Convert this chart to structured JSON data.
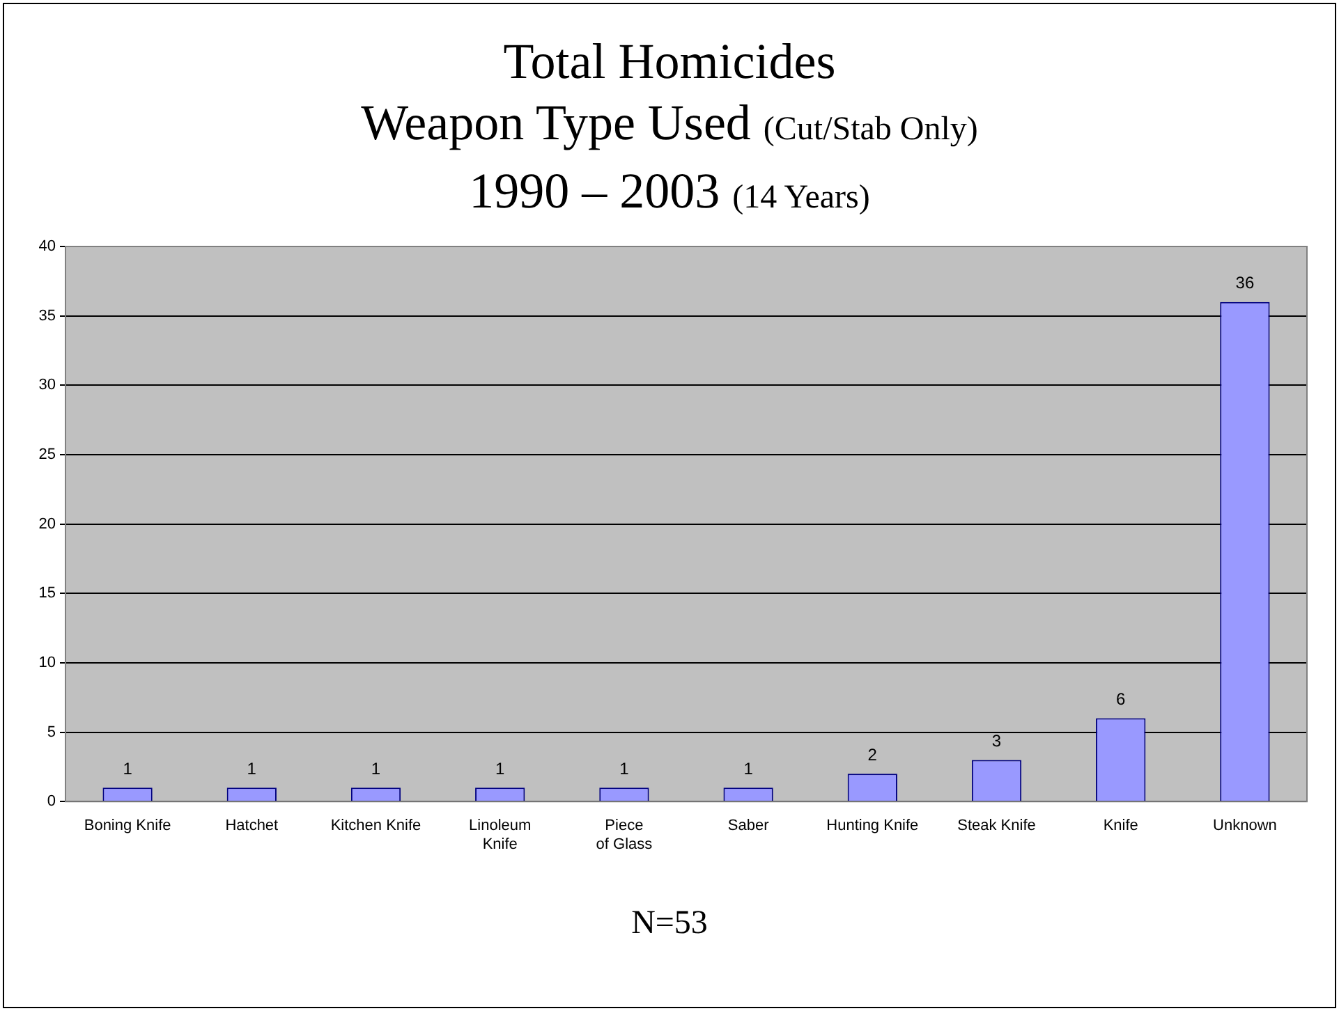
{
  "chart_data": {
    "type": "bar",
    "title": "Total Homicides\nWeapon Type Used (Cut/Stab Only)\n1990 – 2003 (14 Years)",
    "categories": [
      "Boning Knife",
      "Hatchet",
      "Kitchen Knife",
      "Linoleum Knife",
      "Piece of Glass",
      "Saber",
      "Hunting Knife",
      "Steak Knife",
      "Knife",
      "Unknown"
    ],
    "values": [
      1,
      1,
      1,
      1,
      1,
      1,
      2,
      3,
      6,
      36
    ],
    "color": "#9999ff",
    "ylim": [
      0,
      40
    ],
    "yticks": [
      0,
      5,
      10,
      15,
      20,
      25,
      30,
      35,
      40
    ],
    "grid": "y",
    "data_labels": true,
    "legend": false,
    "annotations": [
      "N=53"
    ]
  }
}
